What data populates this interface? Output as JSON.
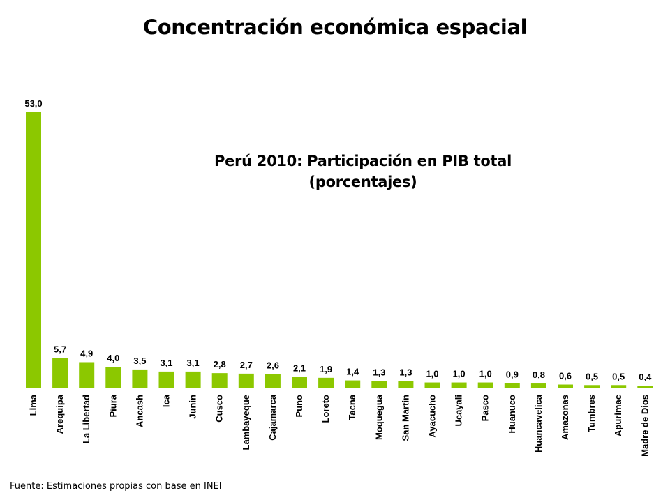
{
  "slide": {
    "title": "Concentración económica espacial",
    "source": "Fuente: Estimaciones propias con base en INEI"
  },
  "colors": {
    "bar": "#8cc800",
    "baseline": "#7fb800",
    "text": "#000000"
  },
  "chart_data": {
    "type": "bar",
    "title": "Perú 2010: Participación en PIB total",
    "subtitle": "(porcentajes)",
    "xlabel": "",
    "ylabel": "",
    "ylim": [
      0,
      53
    ],
    "grid": false,
    "legend": "none",
    "categories": [
      "Lima",
      "Arequipa",
      "La Libertad",
      "Piura",
      "Ancash",
      "Ica",
      "Junin",
      "Cusco",
      "Lambayeque",
      "Cajamarca",
      "Puno",
      "Loreto",
      "Tacna",
      "Moquegua",
      "San Martin",
      "Ayacucho",
      "Ucayali",
      "Pasco",
      "Huanuco",
      "Huancavelica",
      "Amazonas",
      "Tumbres",
      "Apurimac",
      "Madre de Dios"
    ],
    "values": [
      53.0,
      5.7,
      4.9,
      4.0,
      3.5,
      3.1,
      3.1,
      2.8,
      2.7,
      2.6,
      2.1,
      1.9,
      1.4,
      1.3,
      1.3,
      1.0,
      1.0,
      1.0,
      0.9,
      0.8,
      0.6,
      0.5,
      0.5,
      0.4
    ],
    "value_labels": [
      "53,0",
      "5,7",
      "4,9",
      "4,0",
      "3,5",
      "3,1",
      "3,1",
      "2,8",
      "2,7",
      "2,6",
      "2,1",
      "1,9",
      "1,4",
      "1,3",
      "1,3",
      "1,0",
      "1,0",
      "1,0",
      "0,9",
      "0,8",
      "0,6",
      "0,5",
      "0,5",
      "0,4"
    ]
  }
}
